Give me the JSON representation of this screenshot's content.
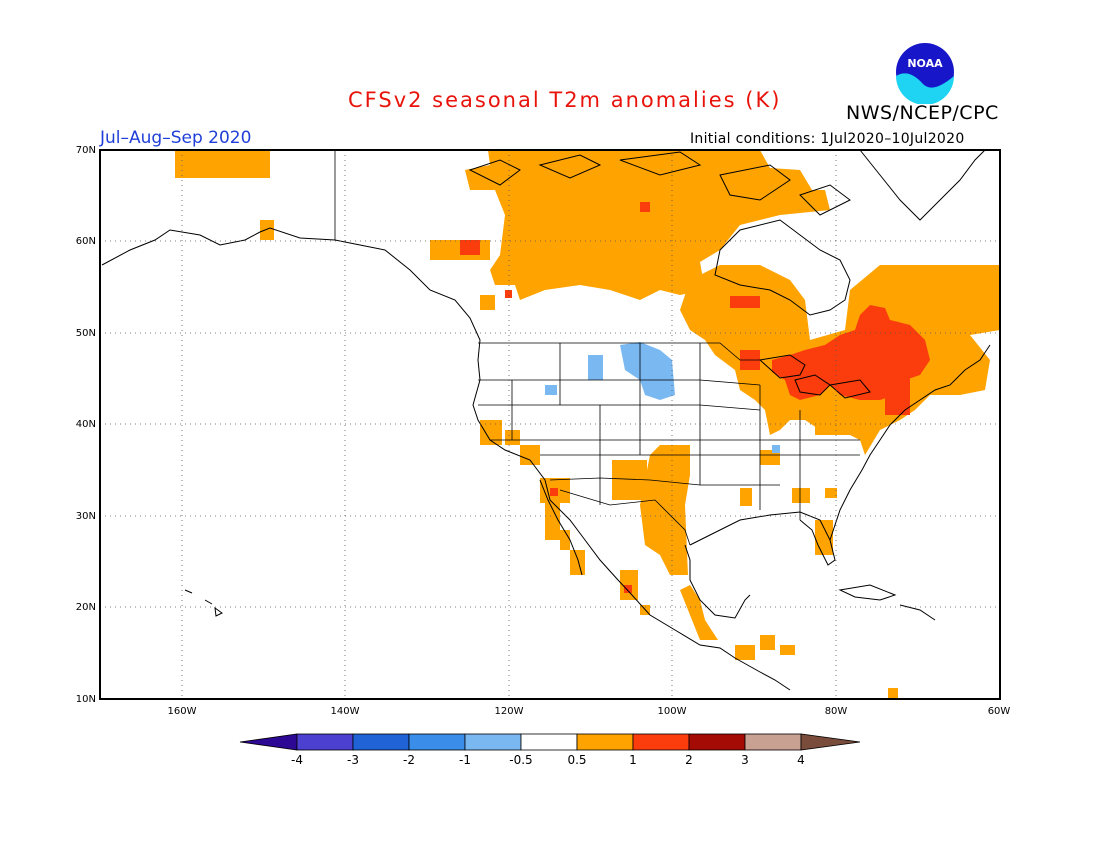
{
  "header": {
    "title": "CFSv2 seasonal T2m anomalies (K)",
    "org": "NWS/NCEP/CPC",
    "period": "Jul–Aug–Sep 2020",
    "initial_conditions": "Initial conditions: 1Jul2020–10Jul2020",
    "logo_text": "NOAA"
  },
  "map": {
    "lon_range": [
      -170,
      -60
    ],
    "lat_range": [
      10,
      70
    ],
    "lat_labels": [
      "70N",
      "60N",
      "50N",
      "40N",
      "30N",
      "20N",
      "10N"
    ],
    "lon_labels": [
      "160W",
      "140W",
      "120W",
      "100W",
      "80W",
      "60W"
    ],
    "grid": true
  },
  "colorbar": {
    "labels": [
      "-4",
      "-3",
      "-2",
      "-1",
      "-0.5",
      "0.5",
      "1",
      "2",
      "3",
      "4"
    ],
    "colors": [
      "#2c0894",
      "#4b40cf",
      "#1f63d6",
      "#3a8de8",
      "#7ab8f2",
      "#ffffff",
      "#fea300",
      "#fb3c0d",
      "#a50b05",
      "#c9a192",
      "#7a4c3b"
    ]
  },
  "colors": {
    "title": "#e8140c",
    "period": "#1f3fd8",
    "warm1": "#fea300",
    "warm2": "#fb3c0d",
    "cool1": "#7ab8f2"
  }
}
